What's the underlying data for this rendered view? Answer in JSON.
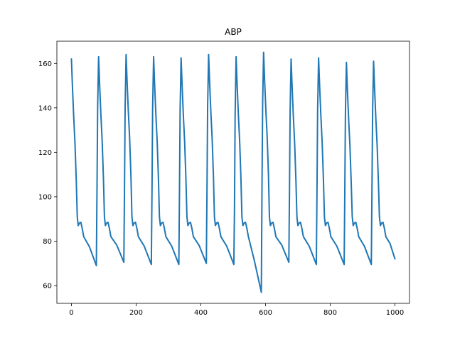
{
  "chart_data": {
    "type": "line",
    "title": "ABP",
    "xlabel": "",
    "ylabel": "",
    "xlim": [
      -45,
      1045
    ],
    "ylim": [
      52,
      170
    ],
    "xticks": [
      0,
      200,
      400,
      600,
      800,
      1000
    ],
    "yticks": [
      60,
      80,
      100,
      120,
      140,
      160
    ],
    "grid": false,
    "legend": "none",
    "line_color": "#1f77b4",
    "beats": [
      {
        "start": 0,
        "peak": 162,
        "trough": 69
      },
      {
        "start": 77,
        "peak": 163,
        "trough": 70.5
      },
      {
        "start": 162,
        "peak": 164,
        "trough": 69.5
      },
      {
        "start": 247,
        "peak": 163,
        "trough": 69.5
      },
      {
        "start": 332,
        "peak": 162.5,
        "trough": 70
      },
      {
        "start": 417,
        "peak": 164,
        "trough": 69.5
      },
      {
        "start": 502,
        "peak": 163,
        "trough": 57
      },
      {
        "start": 587,
        "peak": 165,
        "trough": 70.5
      },
      {
        "start": 672,
        "peak": 162,
        "trough": 69.5
      },
      {
        "start": 757,
        "peak": 162.5,
        "trough": 69.5
      },
      {
        "start": 843,
        "peak": 160.5,
        "trough": 69.5
      },
      {
        "start": 927,
        "peak": 161,
        "trough": 72
      }
    ]
  }
}
